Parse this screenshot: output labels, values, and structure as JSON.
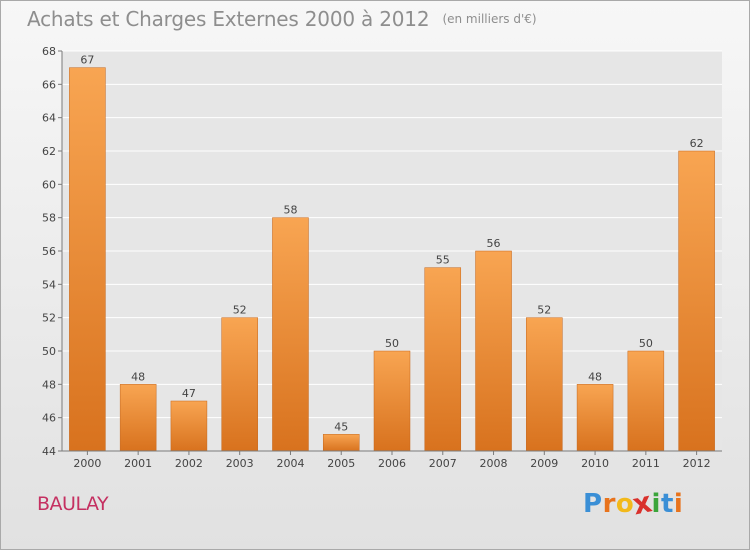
{
  "chart_data": {
    "type": "bar",
    "title": "Achats et Charges Externes 2000 à 2012",
    "subtitle": "(en milliers d'€)",
    "categories": [
      "2000",
      "2001",
      "2002",
      "2003",
      "2004",
      "2005",
      "2006",
      "2007",
      "2008",
      "2009",
      "2010",
      "2011",
      "2012"
    ],
    "values": [
      67,
      48,
      47,
      52,
      58,
      45,
      50,
      55,
      56,
      52,
      48,
      50,
      62
    ],
    "xlabel": "",
    "ylabel": "",
    "ylim": [
      44,
      68
    ],
    "yticks": [
      44,
      46,
      48,
      50,
      52,
      54,
      56,
      58,
      60,
      62,
      64,
      66,
      68
    ],
    "grid": true,
    "legend": "none",
    "bar_color_top": "#f8a552",
    "bar_color_bottom": "#d8721e"
  },
  "place_name": "BAULAY",
  "logo": {
    "letters": [
      "P",
      "r",
      "o",
      "x",
      "i",
      "t",
      "i"
    ],
    "colors": [
      "#3a8fd6",
      "#e8731c",
      "#f2b91b",
      "#d9312c",
      "#3ba53b",
      "#3a8fd6",
      "#e8731c"
    ]
  }
}
